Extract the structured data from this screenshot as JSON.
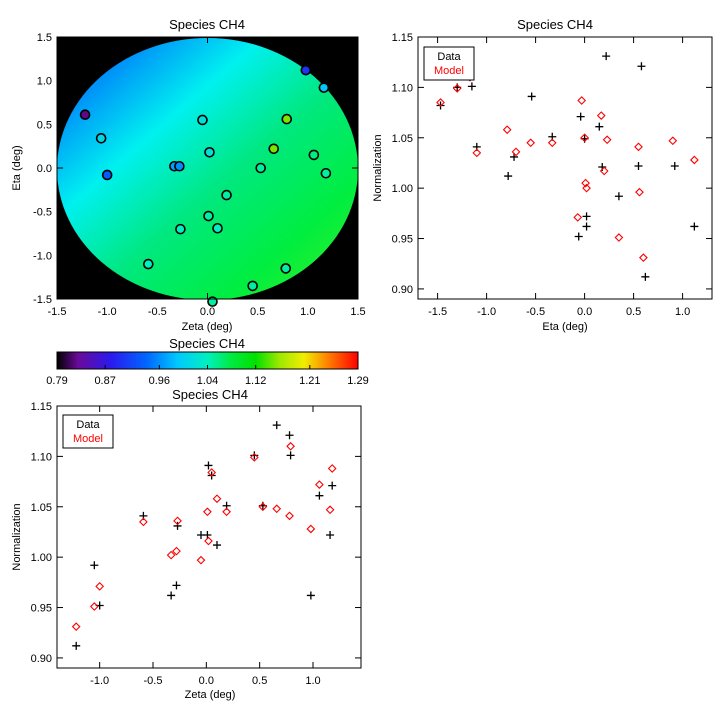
{
  "colors": {
    "data_marker": "#000000",
    "model_marker": "#ff0000",
    "map_background": "#000000"
  },
  "chart_data": [
    {
      "id": "map",
      "type": "scatter",
      "title": "Species CH4",
      "xlabel": "Zeta (deg)",
      "ylabel": "Eta (deg)",
      "xlim": [
        -1.5,
        1.5
      ],
      "ylim": [
        -1.5,
        1.5
      ],
      "xticks": [
        -1.5,
        -1.0,
        -0.5,
        0.0,
        0.5,
        1.0,
        1.5
      ],
      "xticklabels": [
        "-1.5",
        "-1.0",
        "-0.5",
        "0.0",
        "0.5",
        "1.0",
        "1.5"
      ],
      "yticks": [
        -1.5,
        -1.0,
        -0.5,
        0.0,
        0.5,
        1.0,
        1.5
      ],
      "yticklabels": [
        "-1.5",
        "-1.0",
        "-0.5",
        "0.0",
        "0.5",
        "1.0",
        "1.5"
      ],
      "field_radius": 1.5,
      "points": [
        {
          "zeta": -1.22,
          "eta": 0.61,
          "value": 0.82
        },
        {
          "zeta": -1.06,
          "eta": 0.34,
          "value": 1.01
        },
        {
          "zeta": -1.0,
          "eta": -0.08,
          "value": 0.93
        },
        {
          "zeta": -0.33,
          "eta": 0.02,
          "value": 0.97
        },
        {
          "zeta": -0.28,
          "eta": 0.02,
          "value": 0.96
        },
        {
          "zeta": -0.05,
          "eta": 0.55,
          "value": 1.02
        },
        {
          "zeta": 0.02,
          "eta": 0.18,
          "value": 1.02
        },
        {
          "zeta": 0.19,
          "eta": -0.31,
          "value": 1.05
        },
        {
          "zeta": 0.01,
          "eta": -0.55,
          "value": 1.05
        },
        {
          "zeta": 0.1,
          "eta": -0.69,
          "value": 1.04
        },
        {
          "zeta": -0.27,
          "eta": -0.7,
          "value": 1.04
        },
        {
          "zeta": -0.59,
          "eta": -1.1,
          "value": 1.04
        },
        {
          "zeta": 0.05,
          "eta": -1.53,
          "value": 1.05
        },
        {
          "zeta": 0.45,
          "eta": -1.35,
          "value": 1.05
        },
        {
          "zeta": 0.78,
          "eta": -1.15,
          "value": 1.05
        },
        {
          "zeta": 0.53,
          "eta": 0.0,
          "value": 1.05
        },
        {
          "zeta": 0.66,
          "eta": 0.22,
          "value": 1.15
        },
        {
          "zeta": 0.79,
          "eta": 0.56,
          "value": 1.15
        },
        {
          "zeta": 1.06,
          "eta": 0.15,
          "value": 1.06
        },
        {
          "zeta": 1.18,
          "eta": -0.06,
          "value": 1.05
        },
        {
          "zeta": 0.98,
          "eta": 1.12,
          "value": 0.9
        },
        {
          "zeta": 1.16,
          "eta": 0.92,
          "value": 0.99
        }
      ]
    },
    {
      "id": "colorbar",
      "type": "heatmap",
      "title": "Species CH4",
      "vmin": 0.79,
      "vmax": 1.29,
      "ticks": [
        0.79,
        0.87,
        0.96,
        1.04,
        1.12,
        1.21,
        1.29
      ],
      "ticklabels": [
        "0.79",
        "0.87",
        "0.96",
        "1.04",
        "1.12",
        "1.21",
        "1.29"
      ]
    },
    {
      "id": "eta",
      "type": "scatter",
      "title": "Species CH4",
      "xlabel": "Eta (deg)",
      "ylabel": "Normalization",
      "xlim": [
        -1.7,
        1.3
      ],
      "ylim": [
        0.89,
        1.15
      ],
      "xticks": [
        -1.5,
        -1.0,
        -0.5,
        0.0,
        0.5,
        1.0
      ],
      "xticklabels": [
        "-1.5",
        "-1.0",
        "-0.5",
        "0.0",
        "0.5",
        "1.0"
      ],
      "yticks": [
        0.9,
        0.95,
        1.0,
        1.05,
        1.1,
        1.15
      ],
      "yticklabels": [
        "0.90",
        "0.95",
        "1.00",
        "1.05",
        "1.10",
        "1.15"
      ],
      "legend": [
        "Data",
        "Model"
      ],
      "legend_position": "top-left",
      "series": [
        {
          "name": "Data",
          "marker": "plus",
          "points": [
            [
              -1.47,
              1.082
            ],
            [
              -1.3,
              1.1
            ],
            [
              -1.15,
              1.101
            ],
            [
              -1.1,
              1.041
            ],
            [
              -0.78,
              1.012
            ],
            [
              -0.72,
              1.031
            ],
            [
              -0.54,
              1.091
            ],
            [
              -0.33,
              1.051
            ],
            [
              -0.06,
              0.952
            ],
            [
              -0.04,
              1.071
            ],
            [
              0.0,
              1.049
            ],
            [
              0.02,
              0.962
            ],
            [
              0.02,
              0.972
            ],
            [
              0.15,
              1.061
            ],
            [
              0.18,
              1.021
            ],
            [
              0.22,
              1.131
            ],
            [
              0.35,
              0.992
            ],
            [
              0.55,
              1.022
            ],
            [
              0.58,
              1.121
            ],
            [
              0.62,
              0.912
            ],
            [
              0.92,
              1.022
            ],
            [
              1.12,
              0.962
            ]
          ]
        },
        {
          "name": "Model",
          "marker": "diamond",
          "points": [
            [
              -1.47,
              1.085
            ],
            [
              -1.3,
              1.099
            ],
            [
              -1.17,
              1.11
            ],
            [
              -1.1,
              1.035
            ],
            [
              -0.79,
              1.058
            ],
            [
              -0.7,
              1.036
            ],
            [
              -0.55,
              1.045
            ],
            [
              -0.33,
              1.045
            ],
            [
              -0.07,
              0.971
            ],
            [
              -0.03,
              1.087
            ],
            [
              0.0,
              1.05
            ],
            [
              0.01,
              1.005
            ],
            [
              0.02,
              1.0
            ],
            [
              0.17,
              1.072
            ],
            [
              0.2,
              1.017
            ],
            [
              0.23,
              1.048
            ],
            [
              0.35,
              0.951
            ],
            [
              0.55,
              1.041
            ],
            [
              0.56,
              0.996
            ],
            [
              0.6,
              0.931
            ],
            [
              0.9,
              1.047
            ],
            [
              1.12,
              1.028
            ]
          ]
        }
      ]
    },
    {
      "id": "zeta",
      "type": "scatter",
      "title": "Species CH4",
      "xlabel": "Zeta (deg)",
      "ylabel": "Normalization",
      "xlim": [
        -1.4,
        1.45
      ],
      "ylim": [
        0.89,
        1.15
      ],
      "xticks": [
        -1.0,
        -0.5,
        0.0,
        0.5,
        1.0
      ],
      "xticklabels": [
        "-1.0",
        "-0.5",
        "0.0",
        "0.5",
        "1.0"
      ],
      "yticks": [
        0.9,
        0.95,
        1.0,
        1.05,
        1.1,
        1.15
      ],
      "yticklabels": [
        "0.90",
        "0.95",
        "1.00",
        "1.05",
        "1.10",
        "1.15"
      ],
      "legend": [
        "Data",
        "Model"
      ],
      "legend_position": "top-left",
      "series": [
        {
          "name": "Data",
          "marker": "plus",
          "points": [
            [
              -1.22,
              0.912
            ],
            [
              -1.05,
              0.992
            ],
            [
              -1.0,
              0.952
            ],
            [
              -0.59,
              1.041
            ],
            [
              -0.33,
              0.962
            ],
            [
              -0.28,
              0.972
            ],
            [
              -0.27,
              1.031
            ],
            [
              -0.05,
              1.022
            ],
            [
              0.01,
              1.022
            ],
            [
              0.02,
              1.091
            ],
            [
              0.05,
              1.081
            ],
            [
              0.1,
              1.012
            ],
            [
              0.19,
              1.051
            ],
            [
              0.45,
              1.101
            ],
            [
              0.53,
              1.051
            ],
            [
              0.66,
              1.131
            ],
            [
              0.78,
              1.121
            ],
            [
              0.79,
              1.101
            ],
            [
              0.98,
              0.962
            ],
            [
              1.06,
              1.061
            ],
            [
              1.16,
              1.022
            ],
            [
              1.18,
              1.071
            ]
          ]
        },
        {
          "name": "Model",
          "marker": "diamond",
          "points": [
            [
              -1.22,
              0.931
            ],
            [
              -1.05,
              0.951
            ],
            [
              -1.0,
              0.971
            ],
            [
              -0.59,
              1.035
            ],
            [
              -0.33,
              1.002
            ],
            [
              -0.28,
              1.006
            ],
            [
              -0.27,
              1.036
            ],
            [
              -0.05,
              0.997
            ],
            [
              0.01,
              1.045
            ],
            [
              0.02,
              1.016
            ],
            [
              0.05,
              1.084
            ],
            [
              0.1,
              1.058
            ],
            [
              0.19,
              1.045
            ],
            [
              0.45,
              1.099
            ],
            [
              0.53,
              1.05
            ],
            [
              0.66,
              1.048
            ],
            [
              0.78,
              1.041
            ],
            [
              0.79,
              1.11
            ],
            [
              0.98,
              1.028
            ],
            [
              1.06,
              1.072
            ],
            [
              1.16,
              1.047
            ],
            [
              1.18,
              1.088
            ]
          ]
        }
      ]
    }
  ]
}
